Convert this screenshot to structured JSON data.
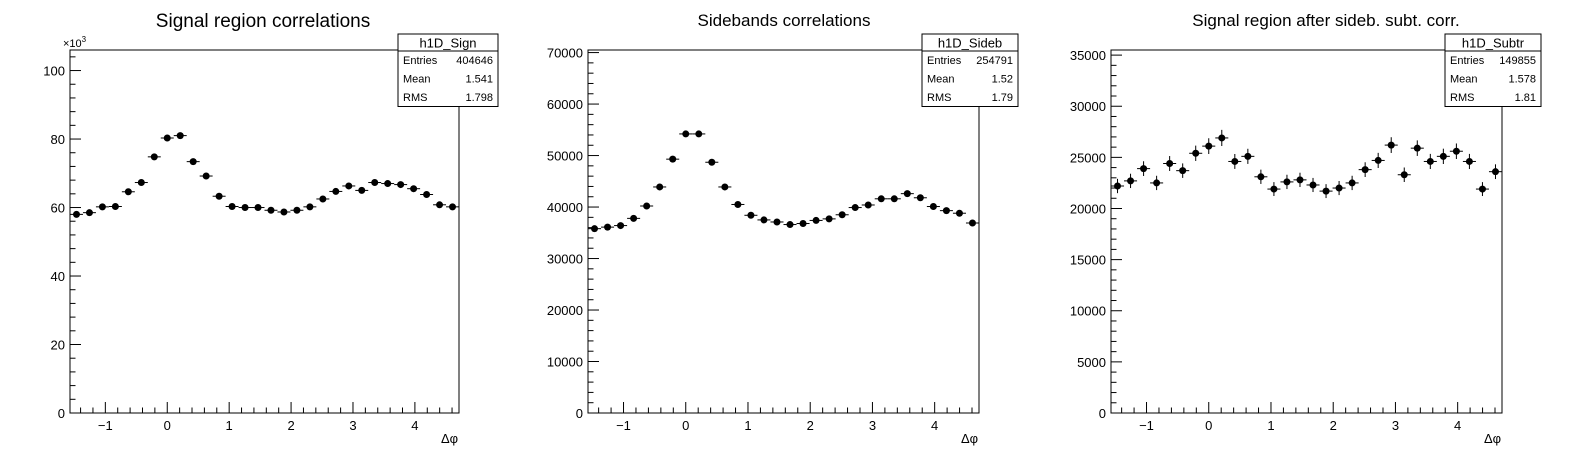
{
  "chart_data": [
    {
      "type": "scatter",
      "title": "Signal region correlations",
      "xlabel": "Δφ",
      "ylabel": "",
      "xlim": [
        -1.5708,
        4.7124
      ],
      "ylim": [
        0,
        106000
      ],
      "xticks": [
        -1,
        0,
        1,
        2,
        3,
        4
      ],
      "xtick_labels": [
        "−1",
        "0",
        "1",
        "2",
        "3",
        "4"
      ],
      "yticks": [
        0,
        20000,
        40000,
        60000,
        80000,
        100000
      ],
      "ytick_labels": [
        "0",
        "20",
        "40",
        "60",
        "80",
        "100"
      ],
      "y_exponent_label": "×10",
      "y_exponent_power": "3",
      "legend_position": "top-right",
      "stats": {
        "name": "h1D_Sign",
        "rows": [
          {
            "label": "Entries",
            "value": "404646"
          },
          {
            "label": "Mean",
            "value": "1.541"
          },
          {
            "label": "RMS",
            "value": "1.798"
          }
        ]
      },
      "bins": 30,
      "values": [
        58000,
        58500,
        60200,
        60300,
        64600,
        67300,
        74800,
        80300,
        81000,
        73400,
        69200,
        63300,
        60300,
        60000,
        60000,
        59200,
        58700,
        59200,
        60200,
        62500,
        64700,
        66300,
        65000,
        67300,
        67000,
        66700,
        65500,
        63800,
        60800,
        60200
      ],
      "errors": [
        240,
        240,
        245,
        245,
        255,
        260,
        275,
        285,
        285,
        270,
        265,
        250,
        245,
        245,
        245,
        245,
        240,
        245,
        245,
        250,
        255,
        258,
        255,
        260,
        260,
        258,
        256,
        253,
        247,
        245
      ]
    },
    {
      "type": "scatter",
      "title": "Sidebands correlations",
      "xlabel": "Δφ",
      "ylabel": "",
      "xlim": [
        -1.5708,
        4.7124
      ],
      "ylim": [
        0,
        70500
      ],
      "xticks": [
        -1,
        0,
        1,
        2,
        3,
        4
      ],
      "xtick_labels": [
        "−1",
        "0",
        "1",
        "2",
        "3",
        "4"
      ],
      "yticks": [
        0,
        10000,
        20000,
        30000,
        40000,
        50000,
        60000,
        70000
      ],
      "ytick_labels": [
        "0",
        "10000",
        "20000",
        "30000",
        "40000",
        "50000",
        "60000",
        "70000"
      ],
      "legend_position": "top-right",
      "stats": {
        "name": "h1D_Sideb",
        "rows": [
          {
            "label": "Entries",
            "value": "254791"
          },
          {
            "label": "Mean",
            "value": "1.52"
          },
          {
            "label": "RMS",
            "value": "1.79"
          }
        ]
      },
      "bins": 30,
      "values": [
        35800,
        36100,
        36400,
        37800,
        40200,
        43900,
        49300,
        54200,
        54200,
        48700,
        43900,
        40500,
        38400,
        37500,
        37100,
        36600,
        36800,
        37400,
        37700,
        38500,
        39900,
        40400,
        41600,
        41600,
        42600,
        41800,
        40100,
        39300,
        38800,
        36900
      ],
      "errors": [
        190,
        190,
        190,
        195,
        200,
        210,
        222,
        233,
        233,
        220,
        210,
        201,
        196,
        194,
        193,
        191,
        192,
        193,
        194,
        196,
        200,
        201,
        204,
        204,
        206,
        204,
        200,
        198,
        197,
        192
      ]
    },
    {
      "type": "scatter",
      "title": "Signal region after sideb. subt. corr.",
      "xlabel": "Δφ",
      "ylabel": "",
      "xlim": [
        -1.5708,
        4.7124
      ],
      "ylim": [
        0,
        35500
      ],
      "xticks": [
        -1,
        0,
        1,
        2,
        3,
        4
      ],
      "xtick_labels": [
        "−1",
        "0",
        "1",
        "2",
        "3",
        "4"
      ],
      "yticks": [
        0,
        5000,
        10000,
        15000,
        20000,
        25000,
        30000,
        35000
      ],
      "ytick_labels": [
        "0",
        "5000",
        "10000",
        "15000",
        "20000",
        "25000",
        "30000",
        "35000"
      ],
      "legend_position": "top-right",
      "stats": {
        "name": "h1D_Subtr",
        "rows": [
          {
            "label": "Entries",
            "value": "149855"
          },
          {
            "label": "Mean",
            "value": "1.578"
          },
          {
            "label": "RMS",
            "value": "1.81"
          }
        ]
      },
      "bins": 30,
      "values": [
        22200,
        22700,
        23900,
        22500,
        24400,
        23700,
        25400,
        26100,
        26900,
        24600,
        25100,
        23100,
        21900,
        22600,
        22800,
        22300,
        21700,
        22000,
        22500,
        23800,
        24700,
        26200,
        23300,
        25900,
        24600,
        25100,
        25600,
        24600,
        21900,
        23600
      ],
      "errors": [
        700,
        700,
        720,
        700,
        730,
        710,
        750,
        770,
        790,
        730,
        740,
        700,
        680,
        700,
        700,
        690,
        680,
        690,
        700,
        720,
        740,
        770,
        710,
        760,
        740,
        750,
        760,
        740,
        680,
        720
      ]
    }
  ]
}
